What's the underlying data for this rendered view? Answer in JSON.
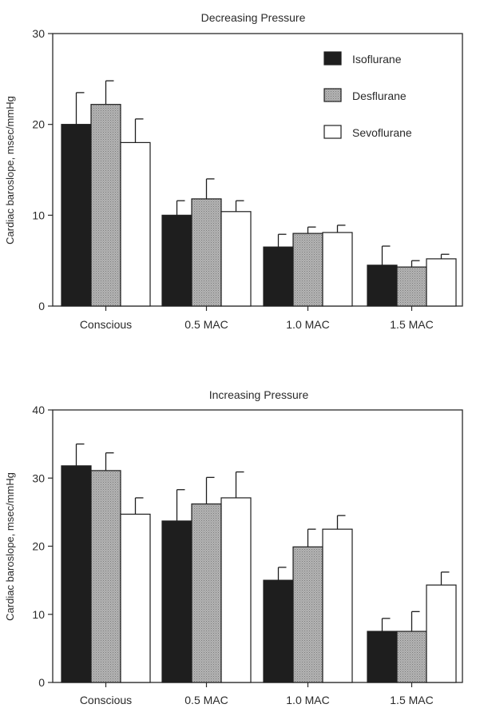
{
  "chart_data": [
    {
      "type": "bar",
      "title": "Decreasing Pressure",
      "xlabel": "",
      "ylabel": "Cardiac baroslope, msec/mmHg",
      "ylim": [
        0,
        30
      ],
      "yticks": [
        0,
        10,
        20,
        30
      ],
      "categories": [
        "Conscious",
        "0.5 MAC",
        "1.0 MAC",
        "1.5 MAC"
      ],
      "legend": {
        "placement": "top-right"
      },
      "series": [
        {
          "name": "Isoflurane",
          "color": "#1e1e1e",
          "pattern": "solid-dark",
          "values": [
            20,
            10,
            6.5,
            4.5
          ],
          "errors": [
            3.5,
            1.6,
            1.4,
            2.1
          ]
        },
        {
          "name": "Desflurane",
          "color": "#a8a8a8",
          "pattern": "stippled-gray",
          "values": [
            22.2,
            11.8,
            8,
            4.3
          ],
          "errors": [
            2.6,
            2.2,
            0.7,
            0.7
          ]
        },
        {
          "name": "Sevoflurane",
          "color": "#ffffff",
          "pattern": "open",
          "values": [
            18,
            10.4,
            8.1,
            5.2
          ],
          "errors": [
            2.6,
            1.2,
            0.8,
            0.5
          ]
        }
      ]
    },
    {
      "type": "bar",
      "title": "Increasing Pressure",
      "xlabel": "",
      "ylabel": "Cardiac baroslope, msec/mmHg",
      "ylim": [
        0,
        40
      ],
      "yticks": [
        0,
        10,
        20,
        30,
        40
      ],
      "categories": [
        "Conscious",
        "0.5 MAC",
        "1.0 MAC",
        "1.5 MAC"
      ],
      "series": [
        {
          "name": "Isoflurane",
          "color": "#1e1e1e",
          "pattern": "solid-dark",
          "values": [
            31.8,
            23.7,
            15,
            7.5
          ],
          "errors": [
            3.2,
            4.6,
            1.9,
            1.9
          ]
        },
        {
          "name": "Desflurane",
          "color": "#a8a8a8",
          "pattern": "stippled-gray",
          "values": [
            31.1,
            26.2,
            19.9,
            7.5
          ],
          "errors": [
            2.6,
            3.9,
            2.6,
            2.9
          ]
        },
        {
          "name": "Sevoflurane",
          "color": "#ffffff",
          "pattern": "open",
          "values": [
            24.7,
            27.1,
            22.5,
            14.3
          ],
          "errors": [
            2.4,
            3.8,
            2,
            1.9
          ]
        }
      ]
    }
  ]
}
